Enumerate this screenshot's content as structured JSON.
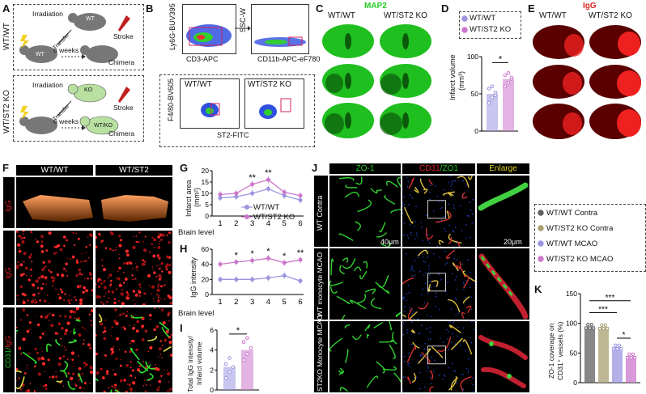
{
  "panels": {
    "A": {
      "label": "A",
      "rows": [
        {
          "group": "WT/WT",
          "irradiation": "Irradiation",
          "donor": "WT",
          "transfer": "Transfer",
          "recipient": "WT",
          "weeks": "6 weeks",
          "stroke": "Stroke",
          "chimera": "Chimera"
        },
        {
          "group": "WT/ST2 KO",
          "irradiation": "Irradiation",
          "donor": "KO",
          "transfer": "Transfer",
          "recipient": "WT/KO",
          "weeks": "6 weeks",
          "stroke": "Stroke",
          "chimera": "Chimera"
        }
      ]
    },
    "B": {
      "label": "B",
      "plot1": {
        "y": "Ly6G-BUV395",
        "x": "CD3-APC"
      },
      "plot2": {
        "y": "SSC-W",
        "x": "CD11b-APC-eF780"
      },
      "plot3": {
        "y": "F4/80-BV605",
        "x": "ST2-FITC",
        "left": "WT/WT",
        "right": "WT/ST2 KO"
      }
    },
    "C": {
      "label": "C",
      "title": "MAP2",
      "col1": "WT/WT",
      "col2": "WT/ST2 KO"
    },
    "D": {
      "label": "D",
      "legend": [
        "WT/WT",
        "WT/ST2 KO"
      ],
      "ylabel": "Infarct volume",
      "yunit": "(mm³)",
      "sig": "*"
    },
    "E": {
      "label": "E",
      "title": "IgG",
      "col1": "WT/WT",
      "col2": "WT/ST2 KO"
    },
    "F": {
      "label": "F",
      "col1": "WT/WT",
      "col2": "WT/ST2",
      "row1": "IgG",
      "row2": "IgG",
      "row3a": "CD31/",
      "row3b": "IgG"
    },
    "G": {
      "label": "G",
      "ylabel": "Infarct area",
      "yunit": "(mm²)",
      "xlabel": "Brain level",
      "legend": [
        "WT/WT",
        "WT/ST2 KO"
      ]
    },
    "H": {
      "label": "H",
      "ylabel": "IgG intensity",
      "xlabel": "Brain level"
    },
    "I": {
      "label": "I",
      "ylabel1": "Total IgG intensity/",
      "ylabel2": "Infarct volume",
      "sig": "*"
    },
    "J": {
      "label": "J",
      "col1": "ZO-1",
      "col2a": "CD31",
      "col2b": "/ZO1",
      "col3": "Enlarge",
      "rows": [
        "WT Contra",
        "WT monocyte MCAO",
        "ST2KO Monocyte MCAO"
      ],
      "scale1": "40μm",
      "scale2": "20μm"
    },
    "K": {
      "label": "K",
      "legend": [
        "WT/WT Contra",
        "WT/ST2 KO Contra",
        "WT/WT MCAO",
        "WT/ST2 KO MCAO"
      ],
      "ylabel1": "ZO-1 coverage on",
      "ylabel2": "CD31⁺ vessels (%)",
      "sig": [
        "***",
        "***",
        "*"
      ]
    }
  },
  "colors": {
    "wt": "#9b95e0",
    "ko": "#cc77cc",
    "green": "#22cc22",
    "red": "#dd2222",
    "k1": "#606060",
    "k2": "#a8a070"
  },
  "chart_data": [
    {
      "type": "bar",
      "panel": "D",
      "categories": [
        "WT/WT",
        "WT/ST2 KO"
      ],
      "values": [
        50,
        70
      ],
      "ylim": [
        0,
        100
      ],
      "yticks": [
        0,
        50,
        100
      ],
      "points": [
        [
          38,
          45,
          52,
          57,
          60,
          48
        ],
        [
          60,
          65,
          70,
          75,
          78,
          72
        ]
      ]
    },
    {
      "type": "line",
      "panel": "G",
      "x": [
        1,
        2,
        3,
        4,
        5,
        6
      ],
      "ylim": [
        0,
        20
      ],
      "yticks": [
        0,
        5,
        10,
        15,
        20
      ],
      "series": [
        {
          "name": "WT/WT",
          "values": [
            8,
            8.5,
            10,
            12,
            9,
            7
          ]
        },
        {
          "name": "WT/ST2 KO",
          "values": [
            9.5,
            10,
            14,
            16,
            10.5,
            9
          ]
        }
      ],
      "annotations": [
        {
          "x": 3,
          "text": "**"
        },
        {
          "x": 4,
          "text": "**"
        }
      ]
    },
    {
      "type": "line",
      "panel": "H",
      "x": [
        1,
        2,
        3,
        4,
        5,
        6
      ],
      "ylim": [
        0,
        60
      ],
      "yticks": [
        0,
        20,
        40,
        60
      ],
      "series": [
        {
          "values": [
            20,
            20,
            20,
            22,
            25,
            18
          ]
        },
        {
          "values": [
            40,
            43,
            45,
            48,
            42,
            46
          ]
        }
      ],
      "annotations": [
        {
          "x": 2,
          "text": "*"
        },
        {
          "x": 3,
          "text": "*"
        },
        {
          "x": 4,
          "text": "*"
        },
        {
          "x": 5,
          "text": "*"
        },
        {
          "x": 6,
          "text": "**"
        }
      ]
    },
    {
      "type": "bar",
      "panel": "I",
      "categories": [
        "WT/WT",
        "WT/ST2 KO"
      ],
      "values": [
        2.3,
        4.0
      ],
      "ylim": [
        0,
        6
      ],
      "yticks": [
        0,
        2,
        4,
        6
      ],
      "points": [
        [
          1.2,
          1.8,
          2.3,
          2.6,
          3.2
        ],
        [
          3.0,
          3.6,
          4.2,
          4.8,
          5.2
        ]
      ]
    },
    {
      "type": "bar",
      "panel": "K",
      "categories": [
        "WT/WT Contra",
        "WT/ST2 KO Contra",
        "WT/WT MCAO",
        "WT/ST2 KO MCAO"
      ],
      "values": [
        95,
        94,
        60,
        45
      ],
      "ylim": [
        0,
        150
      ],
      "yticks": [
        0,
        50,
        100,
        150
      ]
    }
  ]
}
